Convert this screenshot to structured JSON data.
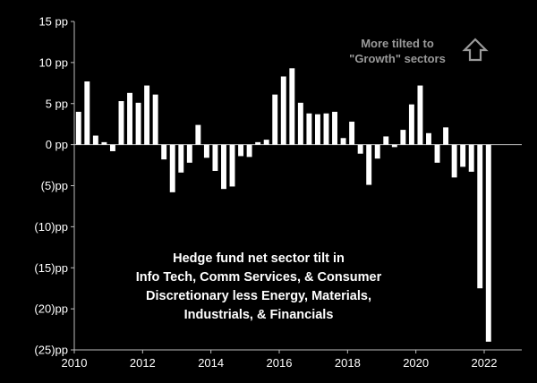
{
  "chart_data": {
    "type": "bar",
    "title_lines": [
      "Hedge fund net sector tilt in",
      "Info Tech, Comm Services, & Consumer",
      "Discretionary less Energy, Materials,",
      "Industrials, & Financials"
    ],
    "annotation_lines": [
      "More tilted to",
      "\"Growth\" sectors"
    ],
    "annotation_icon": "up-arrow-icon",
    "ylabel": "pp",
    "ylim": [
      -25,
      15
    ],
    "xlim": [
      2010,
      2023.1
    ],
    "y_ticks": [
      15,
      10,
      5,
      0,
      -5,
      -10,
      -15,
      -20,
      -25
    ],
    "y_tick_labels": [
      "15 pp",
      "10 pp",
      "5 pp",
      "0 pp",
      "(5)pp",
      "(10)pp",
      "(15)pp",
      "(20)pp",
      "(25)pp"
    ],
    "x_ticks": [
      2010,
      2012,
      2014,
      2016,
      2018,
      2020,
      2022
    ],
    "x_tick_labels": [
      "2010",
      "2012",
      "2014",
      "2016",
      "2018",
      "2020",
      "2022"
    ],
    "series": [
      {
        "name": "Net sector tilt",
        "x": [
          2010.125,
          2010.375,
          2010.625,
          2010.875,
          2011.125,
          2011.375,
          2011.625,
          2011.875,
          2012.125,
          2012.375,
          2012.625,
          2012.875,
          2013.125,
          2013.375,
          2013.625,
          2013.875,
          2014.125,
          2014.375,
          2014.625,
          2014.875,
          2015.125,
          2015.375,
          2015.625,
          2015.875,
          2016.125,
          2016.375,
          2016.625,
          2016.875,
          2017.125,
          2017.375,
          2017.625,
          2017.875,
          2018.125,
          2018.375,
          2018.625,
          2018.875,
          2019.125,
          2019.375,
          2019.625,
          2019.875,
          2020.125,
          2020.375,
          2020.625,
          2020.875,
          2021.125,
          2021.375,
          2021.625,
          2021.875,
          2022.125,
          2022.375
        ],
        "values": [
          4.0,
          7.7,
          1.1,
          0.3,
          -0.8,
          5.3,
          6.3,
          5.1,
          7.2,
          6.1,
          -1.8,
          -5.8,
          -3.4,
          -2.2,
          2.4,
          -1.6,
          -3.2,
          -5.4,
          -5.1,
          -1.4,
          -1.5,
          0.3,
          0.6,
          6.1,
          8.3,
          9.3,
          5.1,
          3.8,
          3.7,
          3.8,
          4.0,
          0.8,
          2.8,
          -1.1,
          -4.9,
          -1.7,
          1.0,
          -0.3,
          1.8,
          4.9,
          7.2,
          1.4,
          -2.2,
          2.1,
          -4.0,
          -2.7,
          -3.3,
          -17.5,
          -24.0,
          0.0
        ]
      }
    ]
  },
  "colors": {
    "background": "#000000",
    "bar": "#ffffff",
    "axis": "#bdbdbd",
    "annotation": "#9a9a9a",
    "text": "#ffffff"
  }
}
